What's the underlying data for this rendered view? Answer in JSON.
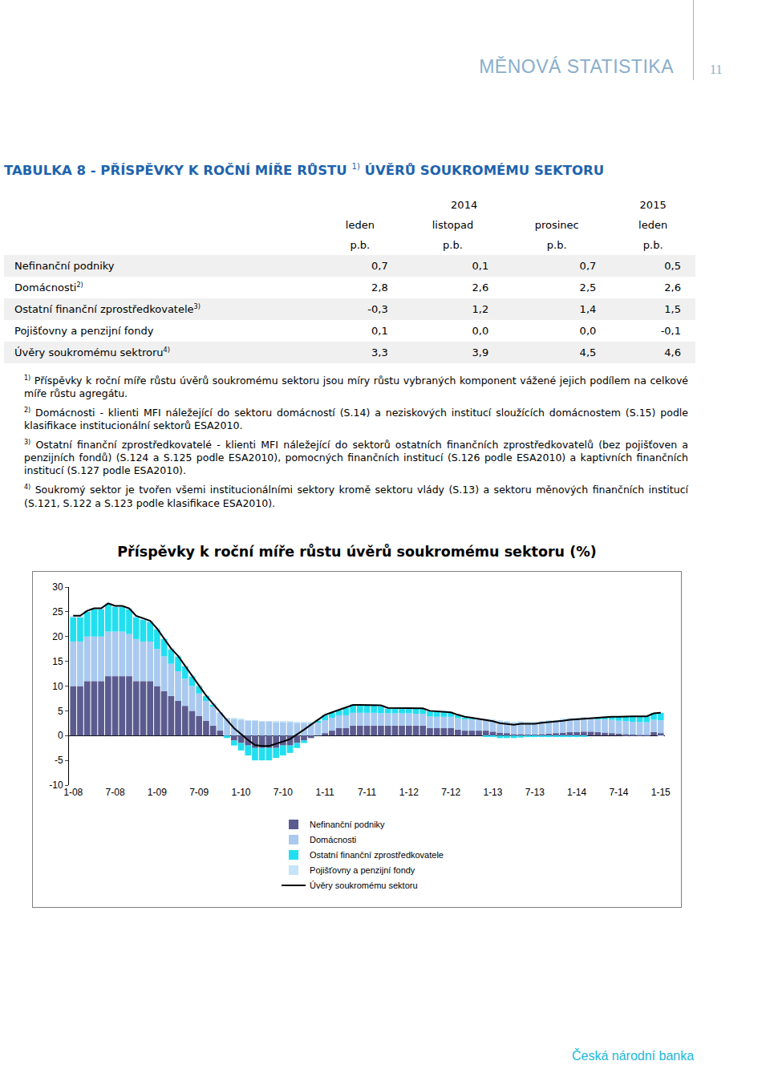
{
  "header": {
    "title": "MĚNOVÁ STATISTIKA",
    "page": "11"
  },
  "table": {
    "title": {
      "text_before": "TABULKA 8 - PŘÍSPĚVKY K ROČNÍ MÍŘE RŮSTU",
      "note": "1)",
      "text_after": "ÚVĚRŮ SOUKROMÉMU SEKTORU"
    },
    "years": [
      {
        "text": "2014",
        "span": 3
      },
      {
        "text": "2015",
        "span": 1
      }
    ],
    "months": [
      "leden",
      "listopad",
      "prosinec",
      "leden"
    ],
    "units": [
      "p.b.",
      "p.b.",
      "p.b.",
      "p.b."
    ],
    "rows": [
      {
        "label": "Nefinanční podniky",
        "note": null,
        "values": [
          "0,7",
          "0,1",
          "0,7",
          "0,5"
        ]
      },
      {
        "label": "Domácnosti",
        "note": "2)",
        "values": [
          "2,8",
          "2,6",
          "2,5",
          "2,6"
        ]
      },
      {
        "label": "Ostatní finanční zprostředkovatele",
        "note": "3)",
        "values": [
          "-0,3",
          "1,2",
          "1,4",
          "1,5"
        ]
      },
      {
        "label": "Pojišťovny a penzijní fondy",
        "note": null,
        "values": [
          "0,1",
          "0,0",
          "0,0",
          "-0,1"
        ]
      },
      {
        "label": "Úvěry soukromému sektroru",
        "note": "4)",
        "values": [
          "3,3",
          "3,9",
          "4,5",
          "4,6"
        ]
      }
    ]
  },
  "footnotes": [
    {
      "mark": "1)",
      "text": "Příspěvky k roční míře růstu  úvěrů soukromému sektoru jsou míry růstu vybraných komponent vážené jejich podílem na celkové míře růstu agregátu."
    },
    {
      "mark": "2)",
      "text": "Domácnosti - klienti MFI náležející do sektoru domácností (S.14) a neziskových institucí sloužících domácnostem (S.15) podle klasifikace institucionální sektorů ESA2010."
    },
    {
      "mark": "3)",
      "text": "Ostatní finanční zprostředkovatelé - klienti MFI náležející do sektorů ostatních finančních zprostředkovatelů (bez pojišťoven a penzijních fondů) (S.124 a S.125 podle ESA2010), pomocných finančních institucí (S.126 podle ESA2010) a kaptivních finančních institucí (S.127 podle ESA2010)."
    },
    {
      "mark": "4)",
      "text": "Soukromý sektor je tvořen všemi institucionálními sektory kromě sektoru vlády (S.13) a sektoru měnových finančních institucí (S.121, S.122 a S.123 podle klasifikace ESA2010)."
    }
  ],
  "chart_data": {
    "type": "bar",
    "title": "Příspěvky k roční míře růstu úvěrů soukromému sektoru (%)",
    "stacked": true,
    "grid": false,
    "legend": "bottom",
    "ylim": [
      -10,
      30
    ],
    "yticks": [
      -10,
      -5,
      0,
      5,
      10,
      15,
      20,
      25,
      30
    ],
    "categories": [
      "1-08",
      null,
      null,
      null,
      null,
      null,
      "7-08",
      null,
      null,
      null,
      null,
      null,
      "1-09",
      null,
      null,
      null,
      null,
      null,
      "7-09",
      null,
      null,
      null,
      null,
      null,
      "1-10",
      null,
      null,
      null,
      null,
      null,
      "7-10",
      null,
      null,
      null,
      null,
      null,
      "1-11",
      null,
      null,
      null,
      null,
      null,
      "7-11",
      null,
      null,
      null,
      null,
      null,
      "1-12",
      null,
      null,
      null,
      null,
      null,
      "7-12",
      null,
      null,
      null,
      null,
      null,
      "1-13",
      null,
      null,
      null,
      null,
      null,
      "7-13",
      null,
      null,
      null,
      null,
      null,
      "1-14",
      null,
      null,
      null,
      null,
      null,
      "7-14",
      null,
      null,
      null,
      null,
      null,
      "1-15"
    ],
    "series": [
      {
        "name": "Nefinanční podniky",
        "color": "#5b5b8f",
        "type": "bar",
        "values": [
          10,
          10,
          11,
          11,
          11,
          12,
          12,
          12,
          12,
          11,
          11,
          11,
          10,
          9,
          8,
          7,
          6,
          5,
          4,
          3,
          2,
          1,
          0,
          -1,
          -1.5,
          -2,
          -2.5,
          -2.5,
          -2.5,
          -2.5,
          -2,
          -2,
          -1.5,
          -1,
          -0.5,
          0,
          0.5,
          1,
          1.5,
          1.5,
          2,
          2,
          2,
          2,
          2,
          2,
          2,
          2,
          2,
          2,
          2,
          1.5,
          1.5,
          1.5,
          1.5,
          1.2,
          1,
          1,
          1,
          1,
          0.8,
          0.6,
          0.5,
          0.3,
          0.3,
          0.2,
          0.2,
          0.3,
          0.4,
          0.5,
          0.6,
          0.7,
          0.7,
          0.8,
          0.8,
          0.7,
          0.6,
          0.5,
          0.4,
          0.3,
          0.2,
          0.1,
          0.1,
          0.7,
          0.5
        ]
      },
      {
        "name": "Domácnosti",
        "color": "#a9c9ef",
        "type": "bar",
        "values": [
          9,
          9,
          9,
          9,
          9,
          9,
          9,
          9,
          8.5,
          8.5,
          8,
          8,
          7.5,
          7,
          6.5,
          6,
          5.5,
          5,
          4.5,
          4,
          3.8,
          3.6,
          3.5,
          3.4,
          3.2,
          3,
          3,
          2.8,
          2.8,
          2.7,
          2.7,
          2.7,
          2.6,
          2.6,
          2.6,
          2.6,
          2.6,
          2.6,
          2.6,
          2.6,
          2.6,
          2.6,
          2.6,
          2.6,
          2.5,
          2.5,
          2.5,
          2.5,
          2.5,
          2.4,
          2.4,
          2.4,
          2.3,
          2.3,
          2.3,
          2.3,
          2.3,
          2.3,
          2.3,
          2.3,
          2.3,
          2.3,
          2.3,
          2.3,
          2.4,
          2.4,
          2.4,
          2.5,
          2.5,
          2.5,
          2.6,
          2.7,
          2.8,
          2.8,
          2.7,
          2.7,
          2.7,
          2.7,
          2.6,
          2.6,
          2.6,
          2.6,
          2.6,
          2.5,
          2.6
        ]
      },
      {
        "name": "Ostatní finanční zprostředkovatele",
        "color": "#22dff0",
        "type": "bar",
        "values": [
          5,
          5,
          5,
          5.5,
          5.5,
          5.5,
          5,
          5,
          5,
          4.5,
          4.5,
          4,
          4,
          3.5,
          3,
          3,
          2.5,
          2,
          1.5,
          1,
          0.5,
          0,
          -0.5,
          -1,
          -1.5,
          -2,
          -2.5,
          -2.5,
          -2.5,
          -2,
          -2,
          -1.5,
          -1,
          -0.5,
          0,
          0.5,
          1,
          1,
          1,
          1.5,
          1.5,
          1.5,
          1.5,
          1.5,
          1.5,
          1,
          1,
          1,
          1,
          1,
          1,
          1,
          1,
          1,
          0.8,
          0.6,
          0.4,
          0.2,
          0,
          -0.2,
          -0.3,
          -0.5,
          -0.5,
          -0.5,
          -0.4,
          -0.3,
          -0.3,
          -0.3,
          -0.3,
          -0.3,
          -0.3,
          -0.3,
          -0.3,
          -0.2,
          0,
          0.2,
          0.4,
          0.6,
          0.8,
          1,
          1.1,
          1.2,
          1.2,
          1.4,
          1.5
        ]
      },
      {
        "name": "Pojišťovny a penzijní fondy",
        "color": "#c6e4f7",
        "type": "bar",
        "values": [
          0.2,
          0.2,
          0.2,
          0.2,
          0.2,
          0.2,
          0.2,
          0.2,
          0.2,
          0.2,
          0.2,
          0.2,
          0.1,
          0.1,
          0.1,
          0.1,
          0.1,
          0.1,
          0.1,
          0.1,
          0.1,
          0.1,
          0.1,
          0.1,
          0.1,
          0.1,
          0.1,
          0.1,
          0.1,
          0.1,
          0.1,
          0.1,
          0.1,
          0.1,
          0.1,
          0.1,
          0.1,
          0.1,
          0.1,
          0.1,
          0.1,
          0.1,
          0.1,
          0.1,
          0.1,
          0.1,
          0.1,
          0.1,
          0.1,
          0.1,
          0.1,
          0.1,
          0.1,
          0.1,
          0.1,
          0.1,
          0.1,
          0.1,
          0.1,
          0.1,
          0.1,
          0.1,
          0.1,
          0.1,
          0.1,
          0.1,
          0.1,
          0.1,
          0.1,
          0.1,
          0.1,
          0.1,
          0.1,
          0.1,
          0.1,
          0.1,
          0.1,
          0,
          0,
          0,
          0,
          0,
          0,
          0,
          -0.1
        ]
      },
      {
        "name": "Úvěry soukromému sektoru",
        "color": "#000000",
        "type": "line",
        "values": [
          24.2,
          24.2,
          25.2,
          25.7,
          25.7,
          26.7,
          26.2,
          26.2,
          25.7,
          24.2,
          23.7,
          23.2,
          21.6,
          19.6,
          17.6,
          16.1,
          14.1,
          12.1,
          10.1,
          8.1,
          6.4,
          4.7,
          3.1,
          1.5,
          0.3,
          -0.9,
          -1.9,
          -2.1,
          -2.1,
          -1.7,
          -1.2,
          -0.7,
          0.2,
          1.2,
          2.2,
          3.2,
          4.2,
          4.7,
          5.2,
          5.7,
          6.2,
          6.2,
          6.2,
          6.2,
          6.1,
          5.6,
          5.6,
          5.6,
          5.6,
          5.5,
          5.5,
          5,
          4.9,
          4.9,
          4.7,
          4.2,
          3.8,
          3.6,
          3.4,
          3.2,
          2.9,
          2.5,
          2.4,
          2.2,
          2.4,
          2.4,
          2.4,
          2.6,
          2.7,
          2.8,
          3,
          3.2,
          3.3,
          3.5,
          3.6,
          3.7,
          3.8,
          3.8,
          3.8,
          3.9,
          3.9,
          3.9,
          3.9,
          4.5,
          4.6
        ]
      }
    ]
  },
  "footer": "Česká národní banka"
}
